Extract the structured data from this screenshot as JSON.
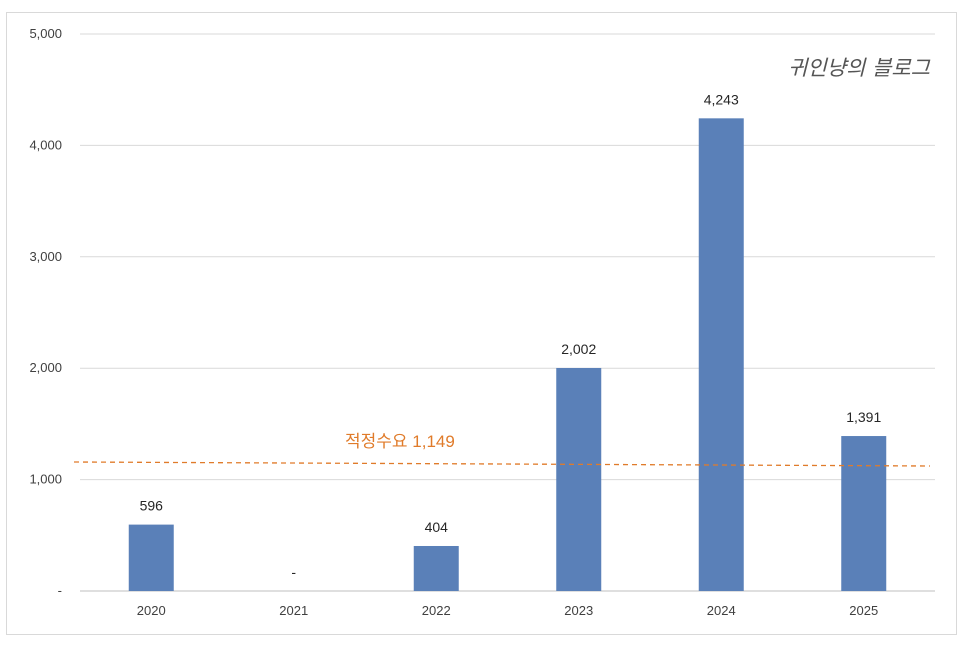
{
  "chart_data": {
    "type": "bar",
    "categories": [
      "2020",
      "2021",
      "2022",
      "2023",
      "2024",
      "2025"
    ],
    "values": [
      596,
      0,
      404,
      2002,
      4243,
      1391
    ],
    "data_labels": [
      "596",
      "-",
      "404",
      "2,002",
      "4,243",
      "1,391"
    ],
    "ylim": [
      0,
      5000
    ],
    "yticks": [
      0,
      1000,
      2000,
      3000,
      4000,
      5000
    ],
    "ytick_labels": [
      "-",
      "1,000",
      "2,000",
      "3,000",
      "4,000",
      "5,000"
    ],
    "grid": true,
    "bar_color": "#5a80b8",
    "reference_line": {
      "value": 1149,
      "label": "적정수요 1,149",
      "color": "#e07b2a",
      "style": "dashed"
    },
    "watermark": "귀인냥의 블로그"
  }
}
